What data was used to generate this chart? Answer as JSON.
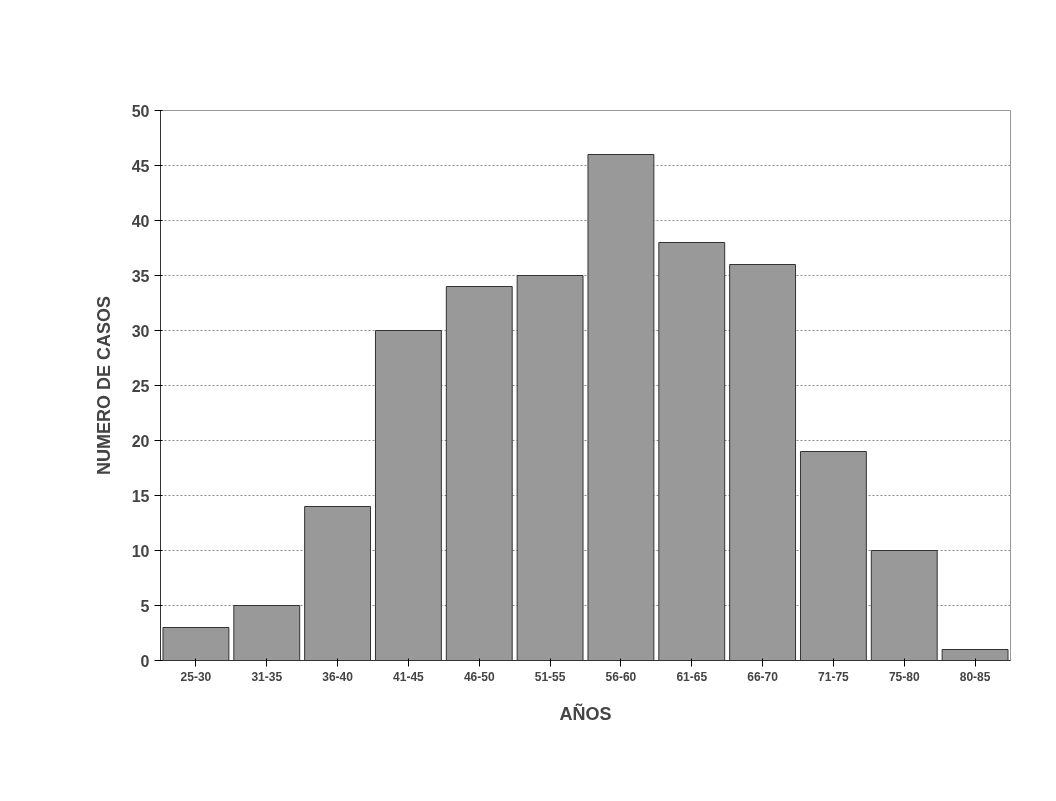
{
  "chart_data": {
    "type": "bar",
    "xlabel": "AÑOS",
    "ylabel": "NUMERO DE CASOS",
    "categories": [
      "25-30",
      "31-35",
      "36-40",
      "41-45",
      "46-50",
      "51-55",
      "56-60",
      "61-65",
      "66-70",
      "71-75",
      "75-80",
      "80-85"
    ],
    "values": [
      3,
      5,
      14,
      30,
      34,
      35,
      46,
      38,
      36,
      19,
      10,
      1
    ],
    "color": "#999999",
    "ylim": [
      0,
      50
    ],
    "yticks": [
      0,
      5,
      10,
      15,
      20,
      25,
      30,
      35,
      40,
      45,
      50
    ],
    "grid": "y"
  }
}
